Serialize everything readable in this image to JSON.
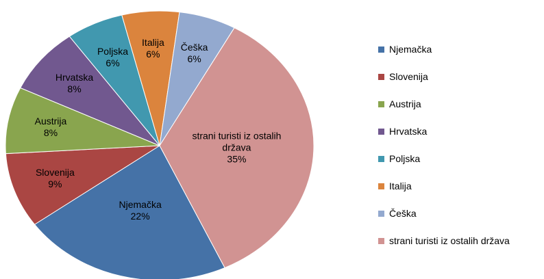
{
  "chart_data": {
    "type": "pie",
    "categories": [
      "Njemačka",
      "Slovenija",
      "Austrija",
      "Hrvatska",
      "Poljska",
      "Italija",
      "Češka",
      "strani turisti iz ostalih država"
    ],
    "values": [
      22,
      9,
      8,
      8,
      6,
      6,
      6,
      35
    ],
    "value_labels": [
      "22%",
      "9%",
      "8%",
      "8%",
      "6%",
      "6%",
      "6%",
      "35%"
    ],
    "colors": [
      "#4572a7",
      "#aa4643",
      "#89a54e",
      "#71588f",
      "#4198af",
      "#db843d",
      "#93a9cf",
      "#d19392"
    ],
    "legend": "right"
  }
}
